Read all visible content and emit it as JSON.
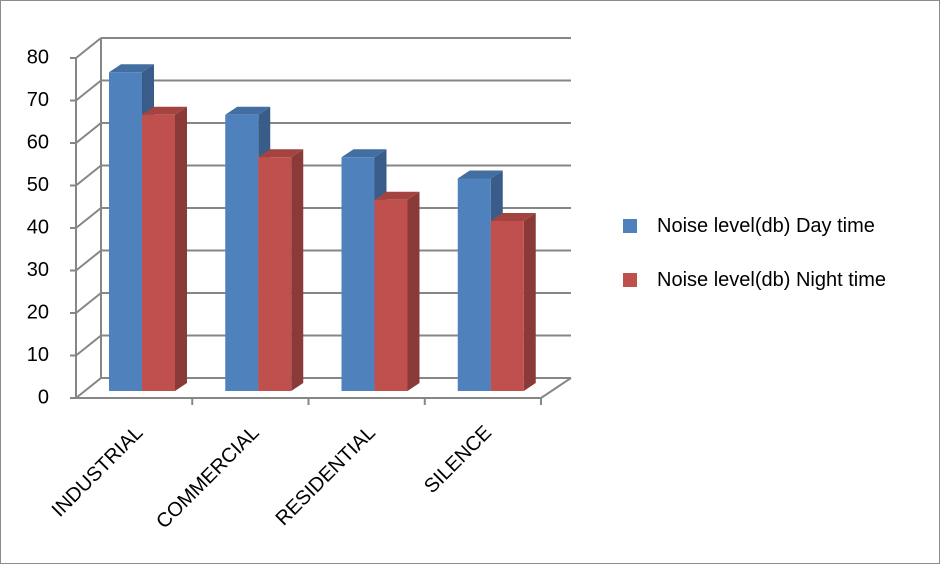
{
  "chart_data": {
    "type": "bar",
    "categories": [
      "INDUSTRIAL",
      "COMMERCIAL",
      "RESIDENTIAL",
      "SILENCE"
    ],
    "series": [
      {
        "name": "Noise level(db) Day time",
        "color": "#4f81bd",
        "values": [
          75,
          65,
          55,
          50
        ]
      },
      {
        "name": "Noise level(db) Night time",
        "color": "#c0504d",
        "values": [
          65,
          55,
          45,
          40
        ]
      }
    ],
    "ylim": [
      0,
      80
    ],
    "yticks": [
      0,
      10,
      20,
      30,
      40,
      50,
      60,
      70,
      80
    ],
    "grid": true,
    "legend": "right"
  }
}
